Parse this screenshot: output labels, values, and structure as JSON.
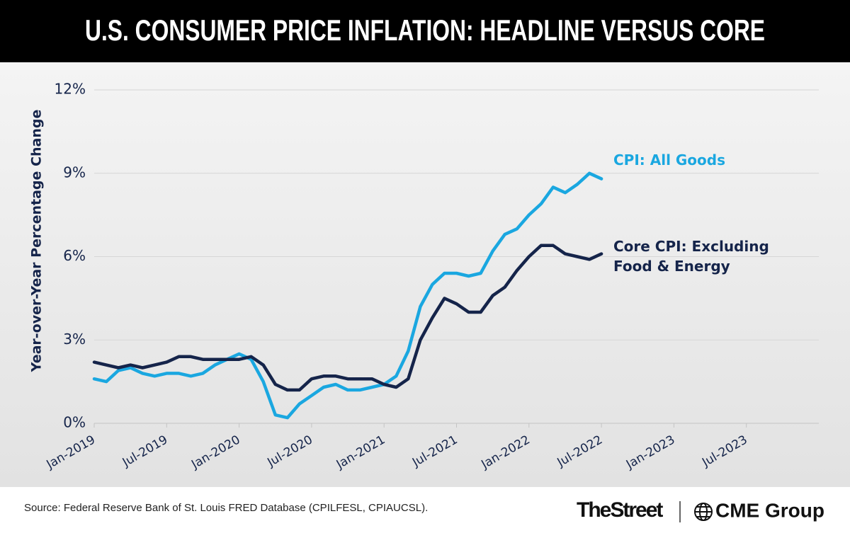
{
  "chart_data": {
    "type": "line",
    "title": "U.S. CONSUMER PRICE INFLATION: HEADLINE VERSUS CORE",
    "y_label": "Year-over-Year Percentage Change",
    "x": [
      "2019-01",
      "2019-02",
      "2019-03",
      "2019-04",
      "2019-05",
      "2019-06",
      "2019-07",
      "2019-08",
      "2019-09",
      "2019-10",
      "2019-11",
      "2019-12",
      "2020-01",
      "2020-02",
      "2020-03",
      "2020-04",
      "2020-05",
      "2020-06",
      "2020-07",
      "2020-08",
      "2020-09",
      "2020-10",
      "2020-11",
      "2020-12",
      "2021-01",
      "2021-02",
      "2021-03",
      "2021-04",
      "2021-05",
      "2021-06",
      "2021-07",
      "2021-08",
      "2021-09",
      "2021-10",
      "2021-11",
      "2021-12",
      "2022-01",
      "2022-02",
      "2022-03",
      "2022-04",
      "2022-05",
      "2022-06",
      "2022-07"
    ],
    "series": [
      {
        "name": "CPI: All Goods",
        "color": "#1aa7e0",
        "values": [
          1.6,
          1.5,
          1.9,
          2.0,
          1.8,
          1.7,
          1.8,
          1.8,
          1.7,
          1.8,
          2.1,
          2.3,
          2.5,
          2.3,
          1.5,
          0.3,
          0.2,
          0.7,
          1.0,
          1.3,
          1.4,
          1.2,
          1.2,
          1.3,
          1.4,
          1.7,
          2.6,
          4.2,
          5.0,
          5.4,
          5.4,
          5.3,
          5.4,
          6.2,
          6.8,
          7.0,
          7.5,
          7.9,
          8.5,
          8.3,
          8.6,
          9.0,
          8.8
        ]
      },
      {
        "name": "Core CPI: Excluding Food & Energy",
        "color": "#15244a",
        "values": [
          2.2,
          2.1,
          2.0,
          2.1,
          2.0,
          2.1,
          2.2,
          2.4,
          2.4,
          2.3,
          2.3,
          2.3,
          2.3,
          2.4,
          2.1,
          1.4,
          1.2,
          1.2,
          1.6,
          1.7,
          1.7,
          1.6,
          1.6,
          1.6,
          1.4,
          1.3,
          1.6,
          3.0,
          3.8,
          4.5,
          4.3,
          4.0,
          4.0,
          4.6,
          4.9,
          5.5,
          6.0,
          6.4,
          6.4,
          6.1,
          6.0,
          5.9,
          6.1
        ]
      }
    ],
    "xlim": [
      "2019-01",
      "2024-01"
    ],
    "xticks": [
      {
        "value": "2019-01",
        "label": "Jan-2019"
      },
      {
        "value": "2019-07",
        "label": "Jul-2019"
      },
      {
        "value": "2020-01",
        "label": "Jan-2020"
      },
      {
        "value": "2020-07",
        "label": "Jul-2020"
      },
      {
        "value": "2021-01",
        "label": "Jan-2021"
      },
      {
        "value": "2021-07",
        "label": "Jul-2021"
      },
      {
        "value": "2022-01",
        "label": "Jan-2022"
      },
      {
        "value": "2022-07",
        "label": "Jul-2022"
      },
      {
        "value": "2023-01",
        "label": "Jan-2023"
      },
      {
        "value": "2023-07",
        "label": "Jul-2023"
      }
    ],
    "ylim": [
      0,
      12
    ],
    "yticks": [
      {
        "value": 0,
        "label": "0%"
      },
      {
        "value": 3,
        "label": "3%"
      },
      {
        "value": 6,
        "label": "6%"
      },
      {
        "value": 9,
        "label": "9%"
      },
      {
        "value": 12,
        "label": "12%"
      }
    ],
    "grid": true,
    "source": "Source: Federal Reserve Bank of St. Louis FRED Database (CPILFESL, CPIAUCSL).",
    "logos": [
      "TheStreet",
      "CME Group"
    ]
  }
}
